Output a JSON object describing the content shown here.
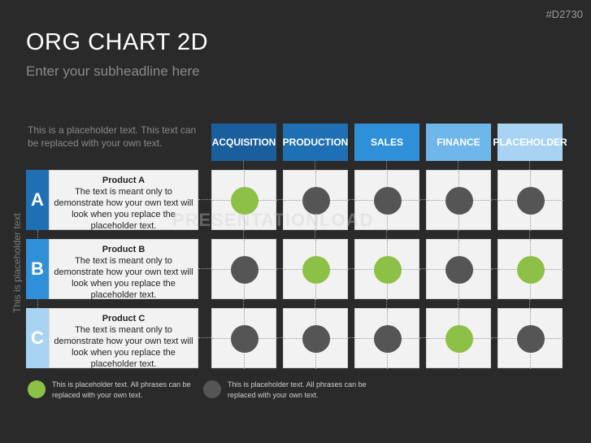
{
  "slide_id": "#D2730",
  "title": "ORG CHART 2D",
  "subtitle": "Enter your subheadline here",
  "placeholder_text": "This is a placeholder text. This text can be replaced with your own text.",
  "vertical_label": "This is placeholder text",
  "watermark": "PRESENTATIONLOAD",
  "colors": {
    "green": "#8dc047",
    "gray": "#555555",
    "headers": [
      "#1a5f9c",
      "#1f6fb4",
      "#2f8fd8",
      "#6fb6ea",
      "#a9d3f3"
    ],
    "row_letters": [
      "#1f6fb4",
      "#2f8fd8",
      "#a9d3f3"
    ]
  },
  "columns": [
    {
      "label": "ACQUISITION"
    },
    {
      "label": "PRODUCTION"
    },
    {
      "label": "SALES"
    },
    {
      "label": "FINANCE"
    },
    {
      "label": "PLACEHOLDER"
    }
  ],
  "rows": [
    {
      "letter": "A",
      "product": "Product A",
      "text": "The text is meant only to demonstrate how your own text will look when you replace the placeholder text.",
      "cells": [
        "green",
        "gray",
        "gray",
        "gray",
        "gray"
      ]
    },
    {
      "letter": "B",
      "product": "Product B",
      "text": "The text is meant only to demonstrate how your own text will look when you replace the placeholder text.",
      "cells": [
        "gray",
        "green",
        "green",
        "gray",
        "green"
      ]
    },
    {
      "letter": "C",
      "product": "Product C",
      "text": "The text is meant only to demonstrate how your own text will look when you replace the placeholder text.",
      "cells": [
        "gray",
        "gray",
        "gray",
        "green",
        "gray"
      ]
    }
  ],
  "legend": [
    {
      "color": "green",
      "text": "This is placeholder text. All phrases can be replaced with your own text."
    },
    {
      "color": "gray",
      "text": "This is placeholder text. All phrases can be replaced with your own text."
    }
  ]
}
